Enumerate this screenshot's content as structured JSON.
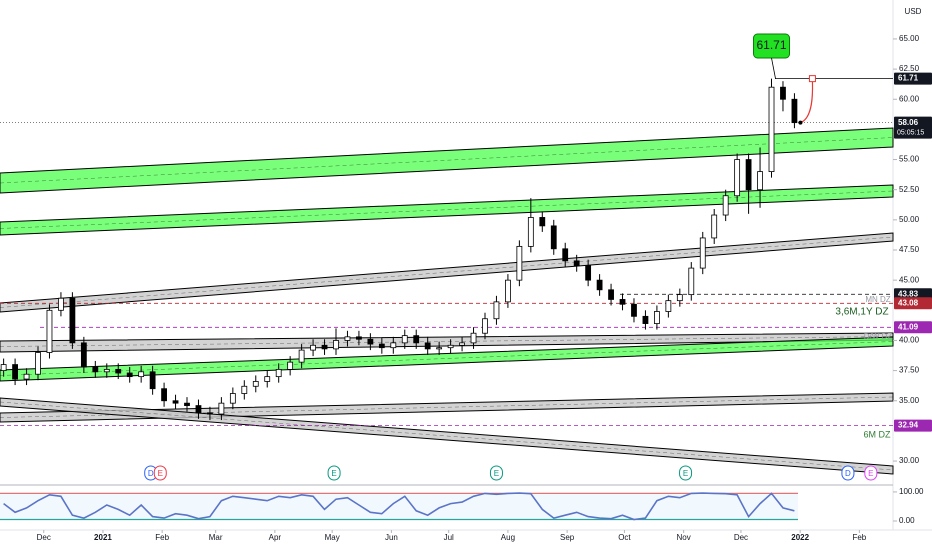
{
  "chart_data": {
    "type": "candlestick",
    "currency": "USD",
    "annotation": "61.71",
    "countdown": "05:05:15",
    "zone_labels": [
      "MN DZ",
      "3,6M,1Y DZ",
      "D/W DZ",
      "6M DZ"
    ],
    "xlim": [
      -53.9,
      413.6
    ],
    "xticks": [
      {
        "value": -31,
        "label": "Dec"
      },
      {
        "value": 0,
        "label": "2021"
      },
      {
        "value": 31,
        "label": "Feb"
      },
      {
        "value": 59,
        "label": "Mar"
      },
      {
        "value": 90,
        "label": "Apr"
      },
      {
        "value": 120,
        "label": "May"
      },
      {
        "value": 151,
        "label": "Jun"
      },
      {
        "value": 181,
        "label": "Jul"
      },
      {
        "value": 212,
        "label": "Aug"
      },
      {
        "value": 243,
        "label": "Sep"
      },
      {
        "value": 273,
        "label": "Oct"
      },
      {
        "value": 304,
        "label": "Nov"
      },
      {
        "value": 334,
        "label": "Dec"
      },
      {
        "value": 365,
        "label": "2022"
      },
      {
        "value": 396,
        "label": "Feb"
      }
    ],
    "ylim": [
      28.18,
      68.23
    ],
    "yticks": [
      {
        "value": 65,
        "label": "65.00"
      },
      {
        "value": 62.5,
        "label": "62.50"
      },
      {
        "value": 60,
        "label": "60.00"
      },
      {
        "value": 55,
        "label": "55.00"
      },
      {
        "value": 52.5,
        "label": "52.50"
      },
      {
        "value": 50,
        "label": "50.00"
      },
      {
        "value": 47.5,
        "label": "47.50"
      },
      {
        "value": 45,
        "label": "45.00"
      },
      {
        "value": 40,
        "label": "40.00"
      },
      {
        "value": 37.5,
        "label": "37.50"
      },
      {
        "value": 35,
        "label": "35.00"
      },
      {
        "value": 30,
        "label": "30.00"
      }
    ],
    "price_labels": [
      {
        "value": 61.71,
        "color": "#131722"
      },
      {
        "value": 58.06,
        "color": "#131722"
      },
      {
        "value": 43.83,
        "color": "#131722"
      },
      {
        "value": 43.08,
        "color": "#b22833"
      },
      {
        "value": 41.09,
        "color": "#9c27b0"
      },
      {
        "value": 32.94,
        "color": "#9c27b0"
      }
    ],
    "candles": {
      "t": [
        -52,
        -46,
        -40,
        -34,
        -28,
        -22,
        -16,
        -10,
        -4,
        2,
        8,
        14,
        20,
        26,
        32,
        38,
        44,
        50,
        56,
        62,
        68,
        74,
        80,
        86,
        92,
        98,
        104,
        110,
        116,
        122,
        128,
        134,
        140,
        146,
        152,
        158,
        164,
        170,
        176,
        182,
        188,
        194,
        200,
        206,
        212,
        218,
        224,
        230,
        236,
        242,
        248,
        254,
        260,
        266,
        272,
        278,
        284,
        290,
        296,
        302,
        308,
        314,
        320,
        326,
        332,
        338,
        344,
        350,
        356,
        362
      ],
      "open": [
        37.5,
        38.0,
        36.8,
        37.2,
        39.0,
        42.5,
        43.5,
        39.8,
        37.8,
        37.4,
        37.6,
        37.3,
        37.0,
        37.4,
        36.0,
        35.0,
        34.8,
        34.6,
        34.0,
        33.9,
        34.8,
        35.6,
        36.2,
        36.6,
        37.0,
        37.6,
        38.2,
        39.2,
        39.6,
        39.3,
        40.0,
        40.3,
        40.1,
        39.7,
        39.4,
        39.8,
        40.4,
        39.8,
        39.3,
        39.4,
        39.6,
        39.8,
        40.6,
        41.8,
        43.2,
        45.0,
        47.8,
        50.2,
        49.5,
        47.6,
        46.6,
        46.2,
        45.0,
        44.2,
        43.4,
        43.0,
        42.0,
        41.4,
        42.4,
        43.3,
        43.8,
        46.0,
        48.5,
        50.4,
        52.0,
        55.0,
        52.5,
        54.0,
        61.0,
        60.0
      ],
      "high": [
        38.5,
        38.5,
        37.7,
        39.5,
        43.0,
        44.0,
        44.0,
        40.3,
        38.3,
        38.1,
        38.1,
        37.8,
        37.9,
        37.9,
        36.5,
        35.5,
        35.3,
        35.1,
        34.5,
        35.3,
        36.1,
        36.7,
        37.1,
        37.5,
        38.1,
        38.7,
        39.7,
        40.1,
        40.1,
        41.0,
        40.8,
        40.8,
        40.6,
        40.2,
        40.3,
        40.9,
        40.9,
        40.3,
        39.9,
        40.1,
        40.3,
        41.1,
        42.3,
        43.7,
        45.5,
        48.3,
        51.8,
        50.7,
        50.0,
        48.1,
        47.1,
        46.7,
        45.5,
        44.7,
        43.9,
        43.5,
        42.5,
        42.9,
        43.8,
        44.3,
        46.5,
        49.0,
        50.9,
        52.5,
        55.5,
        55.5,
        56.0,
        61.71,
        61.5,
        60.5
      ],
      "low": [
        37.0,
        36.3,
        36.3,
        36.7,
        38.5,
        42.0,
        39.3,
        37.3,
        36.9,
        36.9,
        36.8,
        36.5,
        36.5,
        35.5,
        34.5,
        34.3,
        34.1,
        33.5,
        33.4,
        33.4,
        34.3,
        35.1,
        35.7,
        36.1,
        36.5,
        37.1,
        37.7,
        38.7,
        38.8,
        38.8,
        39.5,
        39.6,
        39.2,
        38.9,
        38.9,
        39.3,
        39.3,
        38.8,
        38.8,
        38.9,
        39.1,
        39.3,
        40.1,
        41.3,
        42.7,
        44.5,
        47.3,
        49.0,
        47.1,
        46.1,
        45.7,
        44.5,
        43.7,
        42.9,
        42.5,
        41.5,
        40.9,
        40.9,
        41.9,
        42.8,
        43.3,
        45.5,
        48.0,
        49.9,
        51.5,
        50.5,
        51.0,
        53.5,
        59.0,
        57.6
      ],
      "close": [
        38.0,
        36.8,
        37.2,
        39.0,
        42.5,
        43.5,
        39.8,
        37.8,
        37.4,
        37.6,
        37.3,
        37.0,
        37.4,
        36.0,
        35.0,
        34.8,
        34.6,
        34.0,
        33.9,
        34.8,
        35.6,
        36.2,
        36.6,
        37.0,
        37.6,
        38.2,
        39.2,
        39.6,
        39.3,
        40.0,
        40.3,
        40.1,
        39.7,
        39.4,
        39.8,
        40.4,
        39.8,
        39.3,
        39.4,
        39.6,
        39.8,
        40.6,
        41.8,
        43.2,
        45.0,
        47.8,
        50.2,
        49.5,
        47.6,
        46.6,
        46.2,
        45.0,
        44.2,
        43.4,
        43.0,
        42.0,
        41.4,
        42.4,
        43.3,
        43.8,
        46.0,
        48.5,
        50.4,
        52.0,
        55.0,
        52.5,
        54.0,
        61.0,
        60.0,
        58.06
      ]
    },
    "events": [
      {
        "t": 25,
        "label": "D",
        "color": "#2962ff"
      },
      {
        "t": 30,
        "label": "E",
        "color": "#f23645"
      },
      {
        "t": 121,
        "label": "E",
        "color": "#089981"
      },
      {
        "t": 206,
        "label": "E",
        "color": "#089981"
      },
      {
        "t": 305,
        "label": "E",
        "color": "#089981"
      },
      {
        "t": 390,
        "label": "D",
        "color": "#2962ff"
      },
      {
        "t": 402,
        "label": "E",
        "color": "#e040fb"
      }
    ],
    "rsi": {
      "ylim": [
        -20.7,
        117
      ],
      "yticks": [
        {
          "value": 100,
          "label": "100.00"
        },
        {
          "value": 0,
          "label": "0.00"
        }
      ],
      "levels": [
        95,
        5
      ],
      "values": [
        60,
        30,
        45,
        70,
        90,
        85,
        20,
        10,
        30,
        55,
        40,
        20,
        55,
        15,
        10,
        25,
        20,
        8,
        15,
        70,
        85,
        80,
        75,
        70,
        85,
        80,
        90,
        85,
        40,
        75,
        80,
        55,
        30,
        25,
        60,
        85,
        35,
        20,
        45,
        60,
        65,
        85,
        95,
        92,
        95,
        96,
        94,
        40,
        10,
        20,
        30,
        15,
        10,
        8,
        20,
        5,
        10,
        70,
        85,
        80,
        95,
        96,
        95,
        94,
        90,
        15,
        60,
        95,
        45,
        35
      ]
    }
  }
}
